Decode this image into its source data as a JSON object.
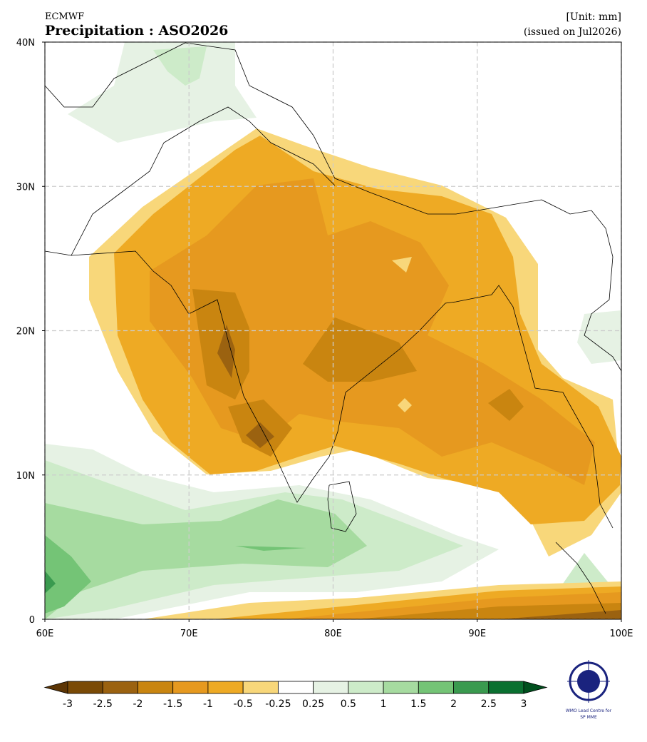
{
  "header": {
    "source": "ECMWF",
    "title": "Precipitation : ASO2026",
    "unit": "[Unit: mm]",
    "issued": "(issued on Jul2026)"
  },
  "map": {
    "xlim": [
      60,
      100
    ],
    "ylim": [
      0,
      40
    ],
    "xticks": [
      {
        "value": 60,
        "label": "60E"
      },
      {
        "value": 70,
        "label": "70E"
      },
      {
        "value": 80,
        "label": "80E"
      },
      {
        "value": 90,
        "label": "90E"
      },
      {
        "value": 100,
        "label": "100E"
      }
    ],
    "yticks": [
      0,
      {
        "value": 10,
        "label": "10N"
      },
      {
        "value": 20,
        "label": "20N"
      },
      {
        "value": 30,
        "label": "30N"
      },
      {
        "value": 40,
        "label": "40N"
      }
    ],
    "grid": true
  },
  "colorbar": {
    "ticks": [
      -3,
      -2.5,
      -2,
      -1.5,
      -1,
      -0.5,
      -0.25,
      0.25,
      0.5,
      1,
      1.5,
      2,
      2.5,
      3
    ],
    "colors": [
      "#5c3505",
      "#7a4a06",
      "#9b6210",
      "#c98510",
      "#e6991f",
      "#eeaa24",
      "#f8d77a",
      "#ffffff",
      "#e6f2e4",
      "#cdebc9",
      "#a6dba0",
      "#74c476",
      "#3a9a4f",
      "#0a7030",
      "#00501e"
    ]
  },
  "logo": {
    "line1": "WMO Lead Centre for",
    "line2": "SP MME"
  }
}
